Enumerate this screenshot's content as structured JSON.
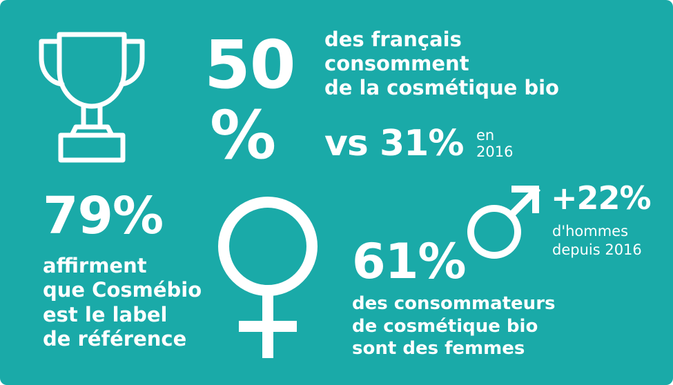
{
  "background_color": "#1aaaa8",
  "text_color": "#ffffff",
  "stat_bio": {
    "value_number": "50",
    "value_unit": "%",
    "description_lines": [
      "des français",
      "consomment",
      "de la cosmétique bio"
    ],
    "comparison": "vs 31%",
    "comparison_note_lines": [
      "en",
      "2016"
    ],
    "icon": "trophy-icon"
  },
  "stat_label": {
    "value": "79%",
    "description_lines": [
      "affirment",
      "que Cosmébio",
      "est le label",
      "de référence"
    ]
  },
  "stat_women": {
    "value": "61%",
    "description_lines": [
      "des consommateurs",
      "de cosmétique bio",
      "sont des femmes"
    ],
    "icon": "female-symbol-icon"
  },
  "stat_men": {
    "value": "+22%",
    "description_lines": [
      "d'hommes",
      "depuis 2016"
    ],
    "icon": "male-symbol-icon"
  }
}
